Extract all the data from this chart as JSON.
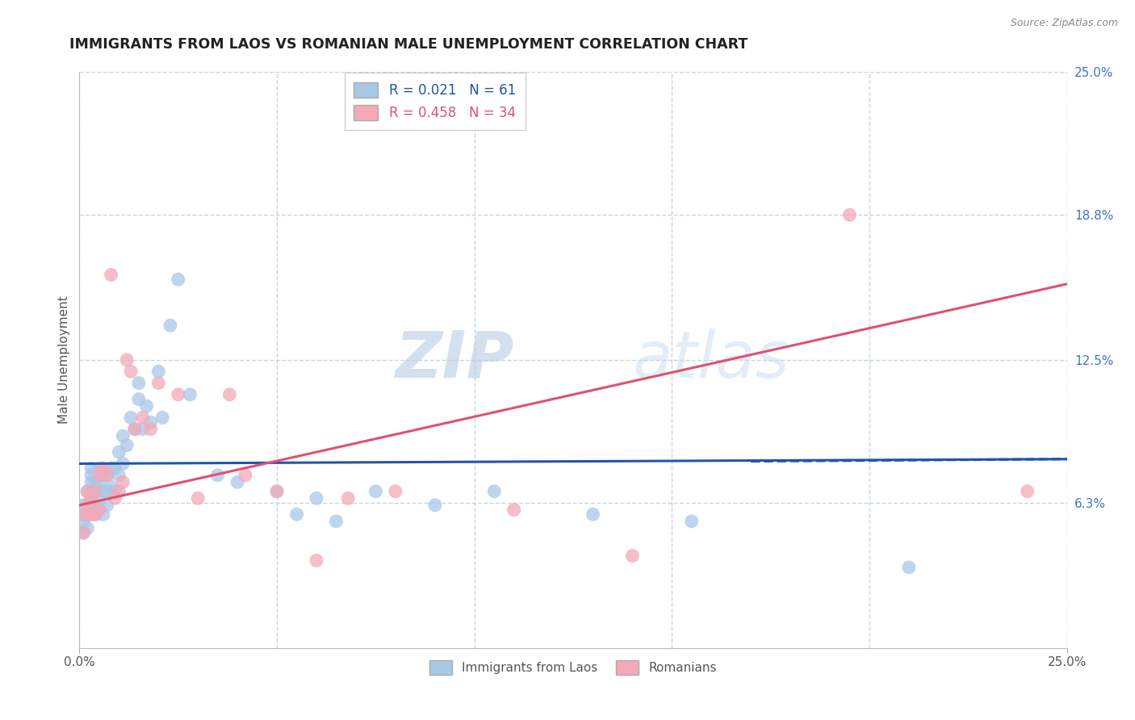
{
  "title": "IMMIGRANTS FROM LAOS VS ROMANIAN MALE UNEMPLOYMENT CORRELATION CHART",
  "source": "Source: ZipAtlas.com",
  "ylabel": "Male Unemployment",
  "xlim": [
    0.0,
    0.25
  ],
  "ylim": [
    0.0,
    0.25
  ],
  "ytick_values": [
    0.063,
    0.125,
    0.188,
    0.25
  ],
  "ytick_labels": [
    "6.3%",
    "12.5%",
    "18.8%",
    "25.0%"
  ],
  "xtick_positions": [
    0.0,
    0.05,
    0.1,
    0.15,
    0.2,
    0.25
  ],
  "watermark_zip": "ZIP",
  "watermark_atlas": "atlas",
  "legend_blue_label": "Immigrants from Laos",
  "legend_pink_label": "Romanians",
  "blue_R": "0.021",
  "blue_N": "61",
  "pink_R": "0.458",
  "pink_N": "34",
  "blue_color": "#a8c8e8",
  "pink_color": "#f4a8b8",
  "blue_line_color": "#2255aa",
  "pink_line_color": "#e05070",
  "background_color": "#ffffff",
  "grid_color": "#c8d4e8",
  "blue_scatter_x": [
    0.001,
    0.001,
    0.001,
    0.001,
    0.002,
    0.002,
    0.002,
    0.002,
    0.003,
    0.003,
    0.003,
    0.003,
    0.003,
    0.003,
    0.004,
    0.004,
    0.004,
    0.004,
    0.005,
    0.005,
    0.005,
    0.005,
    0.006,
    0.006,
    0.006,
    0.007,
    0.007,
    0.007,
    0.008,
    0.008,
    0.009,
    0.009,
    0.01,
    0.01,
    0.011,
    0.011,
    0.012,
    0.013,
    0.014,
    0.015,
    0.015,
    0.016,
    0.017,
    0.018,
    0.02,
    0.021,
    0.023,
    0.025,
    0.028,
    0.035,
    0.04,
    0.05,
    0.055,
    0.06,
    0.065,
    0.075,
    0.09,
    0.105,
    0.13,
    0.155,
    0.21
  ],
  "blue_scatter_y": [
    0.05,
    0.055,
    0.058,
    0.062,
    0.052,
    0.058,
    0.062,
    0.068,
    0.06,
    0.065,
    0.068,
    0.072,
    0.075,
    0.078,
    0.058,
    0.062,
    0.068,
    0.072,
    0.06,
    0.065,
    0.072,
    0.078,
    0.058,
    0.068,
    0.075,
    0.062,
    0.068,
    0.075,
    0.07,
    0.078,
    0.068,
    0.078,
    0.075,
    0.085,
    0.08,
    0.092,
    0.088,
    0.1,
    0.095,
    0.108,
    0.115,
    0.095,
    0.105,
    0.098,
    0.12,
    0.1,
    0.14,
    0.16,
    0.11,
    0.075,
    0.072,
    0.068,
    0.058,
    0.065,
    0.055,
    0.068,
    0.062,
    0.068,
    0.058,
    0.055,
    0.035
  ],
  "pink_scatter_x": [
    0.001,
    0.001,
    0.002,
    0.002,
    0.003,
    0.003,
    0.004,
    0.004,
    0.005,
    0.005,
    0.006,
    0.007,
    0.008,
    0.009,
    0.01,
    0.011,
    0.012,
    0.013,
    0.014,
    0.016,
    0.018,
    0.02,
    0.025,
    0.03,
    0.038,
    0.042,
    0.05,
    0.06,
    0.068,
    0.08,
    0.11,
    0.14,
    0.195,
    0.24
  ],
  "pink_scatter_y": [
    0.05,
    0.058,
    0.062,
    0.068,
    0.058,
    0.065,
    0.058,
    0.068,
    0.06,
    0.075,
    0.078,
    0.075,
    0.162,
    0.065,
    0.068,
    0.072,
    0.125,
    0.12,
    0.095,
    0.1,
    0.095,
    0.115,
    0.11,
    0.065,
    0.11,
    0.075,
    0.068,
    0.038,
    0.065,
    0.068,
    0.06,
    0.04,
    0.188,
    0.068
  ],
  "blue_trend_x": [
    0.0,
    0.25
  ],
  "blue_trend_y": [
    0.08,
    0.082
  ],
  "pink_trend_x": [
    0.0,
    0.25
  ],
  "pink_trend_y": [
    0.062,
    0.158
  ]
}
